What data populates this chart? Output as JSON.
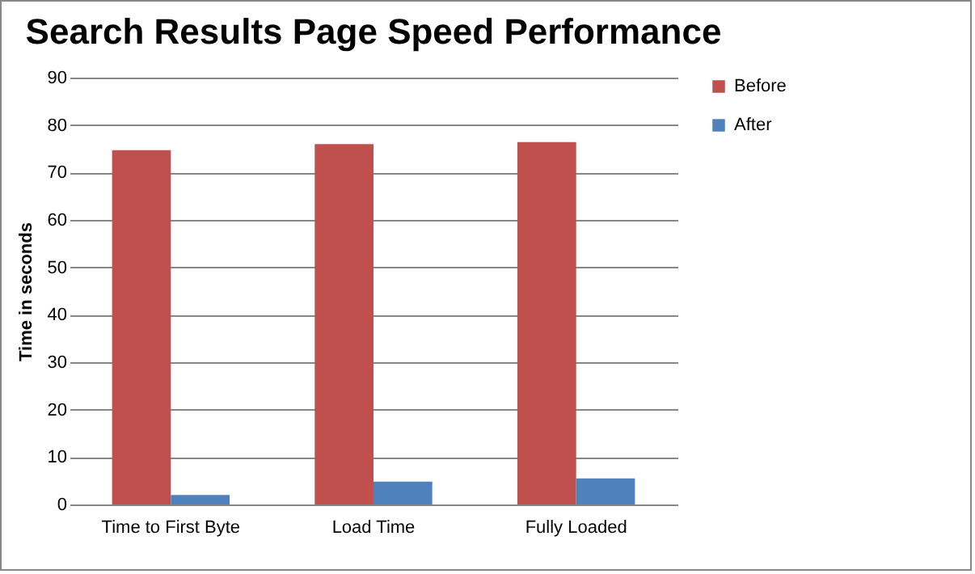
{
  "chart_data": {
    "type": "bar",
    "title": "Search Results Page Speed Performance",
    "ylabel": "Time in seconds",
    "categories": [
      "Time to First Byte",
      "Load Time",
      "Fully Loaded"
    ],
    "series": [
      {
        "name": "Before",
        "color": "#c0504d",
        "values": [
          74.7,
          76.0,
          76.4
        ]
      },
      {
        "name": "After",
        "color": "#4f81bd",
        "values": [
          2.0,
          4.8,
          5.5
        ]
      }
    ],
    "ylim": [
      0,
      90
    ],
    "yticks": [
      0,
      10,
      20,
      30,
      40,
      50,
      60,
      70,
      80,
      90
    ],
    "grid": "y",
    "legend": "right"
  }
}
